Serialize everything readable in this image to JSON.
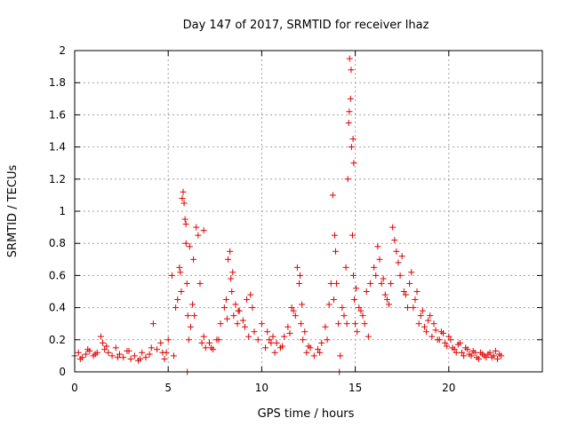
{
  "chart_data": {
    "type": "scatter",
    "title": "Day 147 of 2017, SRMTID for receiver lhaz",
    "xlabel": "GPS time / hours",
    "ylabel": "SRMTID / TECUs",
    "xlim": [
      0,
      25
    ],
    "ylim": [
      0,
      2
    ],
    "xticks": [
      0,
      5,
      10,
      15,
      20
    ],
    "xtick_labels": [
      "0",
      "5",
      "10",
      "15",
      "20"
    ],
    "yticks": [
      0,
      0.2,
      0.4,
      0.6,
      0.8,
      1,
      1.2,
      1.4,
      1.6,
      1.8,
      2
    ],
    "ytick_labels": [
      "0",
      "0.2",
      "0.4",
      "0.6",
      "0.8",
      "1",
      "1.2",
      "1.4",
      "1.6",
      "1.8",
      "2"
    ],
    "grid": true,
    "marker": "+",
    "color": "#e00000",
    "series": [
      {
        "name": "SRMTID",
        "x": [
          0.0,
          0.2,
          0.4,
          0.6,
          0.8,
          1.0,
          1.2,
          1.4,
          1.5,
          1.6,
          1.8,
          2.0,
          2.2,
          2.4,
          2.6,
          2.8,
          3.0,
          3.2,
          3.4,
          3.6,
          3.8,
          4.0,
          4.2,
          4.4,
          4.6,
          4.8,
          4.9,
          5.0,
          5.2,
          5.4,
          5.5,
          5.6,
          5.7,
          5.8,
          5.85,
          5.9,
          5.95,
          6.0,
          6.05,
          6.1,
          6.2,
          6.3,
          6.4,
          6.5,
          6.6,
          6.7,
          6.8,
          6.9,
          7.0,
          7.2,
          7.4,
          7.6,
          7.8,
          8.0,
          8.1,
          8.2,
          8.3,
          8.4,
          8.5,
          8.6,
          8.7,
          8.8,
          9.0,
          9.2,
          9.4,
          9.6,
          9.8,
          10.0,
          10.2,
          10.4,
          10.6,
          10.8,
          11.0,
          11.2,
          11.4,
          11.6,
          11.8,
          11.9,
          12.0,
          12.1,
          12.2,
          12.4,
          12.6,
          12.8,
          13.0,
          13.2,
          13.4,
          13.6,
          13.7,
          13.8,
          13.9,
          14.0,
          14.1,
          14.2,
          14.3,
          14.4,
          14.5,
          14.6,
          14.65,
          14.7,
          14.75,
          14.8,
          14.85,
          14.9,
          14.95,
          15.0,
          15.1,
          15.2,
          15.4,
          15.6,
          15.8,
          16.0,
          16.2,
          16.4,
          16.6,
          16.8,
          17.0,
          17.2,
          17.4,
          17.6,
          17.8,
          18.0,
          18.2,
          18.4,
          18.6,
          18.8,
          19.0,
          19.2,
          19.4,
          19.6,
          19.8,
          20.0,
          20.2,
          20.4,
          20.6,
          20.8,
          21.0,
          21.2,
          21.4,
          21.6,
          21.8,
          22.0,
          22.2,
          22.4,
          22.6,
          22.8,
          0.3,
          0.7,
          1.1,
          1.7,
          2.3,
          2.9,
          3.5,
          4.1,
          4.7,
          5.3,
          5.65,
          5.75,
          5.95,
          6.15,
          6.35,
          6.9,
          7.3,
          7.7,
          8.15,
          8.35,
          8.45,
          8.75,
          9.1,
          9.3,
          9.5,
          10.3,
          10.5,
          10.7,
          11.1,
          11.5,
          11.7,
          12.05,
          12.15,
          12.3,
          12.5,
          13.1,
          13.5,
          13.85,
          13.95,
          14.55,
          14.68,
          14.78,
          14.88,
          14.92,
          15.05,
          15.3,
          15.5,
          15.7,
          16.1,
          16.3,
          16.5,
          16.7,
          16.9,
          17.1,
          17.3,
          17.5,
          17.7,
          17.9,
          18.1,
          18.3,
          18.5,
          18.7,
          18.9,
          19.1,
          19.3,
          19.5,
          19.7,
          19.9,
          20.1,
          20.3,
          20.5,
          20.7,
          20.9,
          21.1,
          21.3,
          21.5,
          21.7,
          21.9,
          22.1,
          22.3,
          22.5,
          22.7,
          6.02,
          14.15
        ],
        "y": [
          0.1,
          0.12,
          0.09,
          0.11,
          0.13,
          0.1,
          0.12,
          0.22,
          0.18,
          0.14,
          0.12,
          0.1,
          0.15,
          0.11,
          0.09,
          0.13,
          0.08,
          0.1,
          0.07,
          0.12,
          0.09,
          0.11,
          0.3,
          0.14,
          0.18,
          0.08,
          0.12,
          0.2,
          0.6,
          0.4,
          0.45,
          0.65,
          0.5,
          1.12,
          1.05,
          0.95,
          0.8,
          0.55,
          0.35,
          0.2,
          0.28,
          0.42,
          0.35,
          0.9,
          0.85,
          0.55,
          0.18,
          0.22,
          0.15,
          0.18,
          0.14,
          0.2,
          0.3,
          0.4,
          0.45,
          0.7,
          0.75,
          0.5,
          0.35,
          0.42,
          0.3,
          0.38,
          0.32,
          0.45,
          0.48,
          0.25,
          0.2,
          0.3,
          0.15,
          0.2,
          0.22,
          0.18,
          0.15,
          0.22,
          0.28,
          0.4,
          0.35,
          0.65,
          0.55,
          0.3,
          0.2,
          0.12,
          0.15,
          0.1,
          0.14,
          0.18,
          0.28,
          0.42,
          0.55,
          1.1,
          0.85,
          0.55,
          0.3,
          0.1,
          0.4,
          0.35,
          0.65,
          1.2,
          1.55,
          1.95,
          1.7,
          1.4,
          0.85,
          0.6,
          0.45,
          0.3,
          0.25,
          0.4,
          0.35,
          0.5,
          0.55,
          0.65,
          0.78,
          0.55,
          0.48,
          0.42,
          0.9,
          0.75,
          0.6,
          0.5,
          0.4,
          0.62,
          0.45,
          0.3,
          0.38,
          0.25,
          0.35,
          0.3,
          0.2,
          0.25,
          0.18,
          0.22,
          0.15,
          0.12,
          0.18,
          0.1,
          0.14,
          0.1,
          0.12,
          0.08,
          0.11,
          0.09,
          0.12,
          0.1,
          0.08,
          0.1,
          0.08,
          0.14,
          0.11,
          0.16,
          0.09,
          0.13,
          0.08,
          0.15,
          0.12,
          0.1,
          0.62,
          1.08,
          0.92,
          0.78,
          0.7,
          0.88,
          0.15,
          0.2,
          0.33,
          0.58,
          0.62,
          0.38,
          0.28,
          0.22,
          0.4,
          0.25,
          0.18,
          0.12,
          0.16,
          0.24,
          0.38,
          0.6,
          0.42,
          0.25,
          0.16,
          0.12,
          0.2,
          0.45,
          0.75,
          0.3,
          1.62,
          1.88,
          1.45,
          1.3,
          0.52,
          0.38,
          0.3,
          0.22,
          0.6,
          0.7,
          0.58,
          0.45,
          0.55,
          0.82,
          0.68,
          0.72,
          0.48,
          0.55,
          0.4,
          0.5,
          0.35,
          0.28,
          0.32,
          0.22,
          0.26,
          0.2,
          0.24,
          0.16,
          0.2,
          0.14,
          0.17,
          0.12,
          0.15,
          0.11,
          0.13,
          0.09,
          0.12,
          0.1,
          0.11,
          0.09,
          0.13,
          0.11,
          0.0,
          0.0
        ]
      }
    ]
  }
}
